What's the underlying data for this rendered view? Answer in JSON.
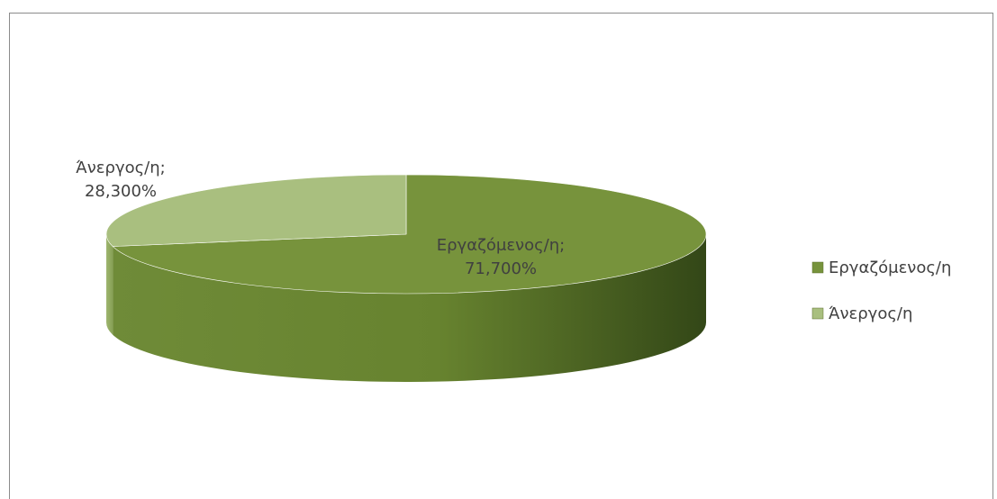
{
  "chart_data": {
    "type": "pie",
    "title": "",
    "categories": [
      "Εργαζόμενος/η",
      "Άνεργος/η"
    ],
    "values": [
      71.7,
      28.3
    ],
    "data_labels": [
      "Εργαζόμενος/η;\n71,700%",
      "Άνεργος/η;\n28,300%"
    ],
    "legend_labels": [
      "Εργαζόμενος/η",
      "Άνεργος/η"
    ],
    "colors": [
      "#77933c",
      "#a9bf7f"
    ],
    "legend": "right",
    "style": "3d"
  }
}
